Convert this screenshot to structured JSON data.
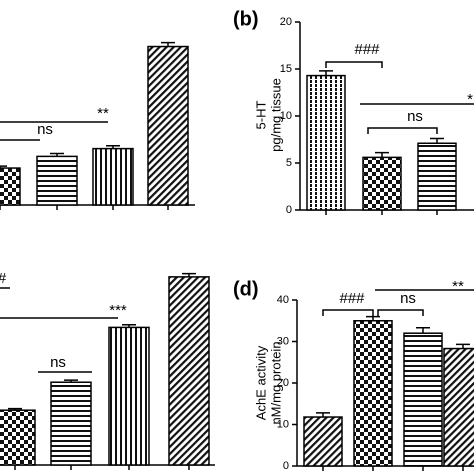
{
  "chart_data": [
    {
      "type": "bar",
      "categories": [
        null,
        null,
        null,
        null
      ],
      "values": [
        3.8,
        5.0,
        5.8,
        16.3
      ],
      "errors": [
        0.2,
        0.3,
        0.3,
        0.4
      ],
      "patterns": [
        "checker",
        "horizontal",
        "vertical",
        "diagonal"
      ],
      "ylim": [
        0,
        18
      ],
      "annotations": [
        "ns",
        "**"
      ]
    },
    {
      "type": "bar",
      "panel_label": "(b)",
      "ylabel": [
        "5-HT",
        "pg/mg tissue"
      ],
      "categories": [
        null,
        null,
        null
      ],
      "values": [
        14.3,
        5.6,
        7.1
      ],
      "errors": [
        0.5,
        0.5,
        0.5
      ],
      "patterns": [
        "vertical-dots",
        "checker",
        "horizontal"
      ],
      "ylim": [
        0,
        20
      ],
      "yticks": [
        0,
        5,
        10,
        15,
        20
      ],
      "annotations": [
        "###",
        "ns",
        "*"
      ]
    },
    {
      "type": "bar",
      "categories": [
        null,
        null,
        null,
        null
      ],
      "values": [
        5.1,
        7.7,
        12.8,
        17.5
      ],
      "errors": [
        0.15,
        0.2,
        0.25,
        0.3
      ],
      "patterns": [
        "checker",
        "horizontal",
        "vertical",
        "diagonal"
      ],
      "ylim": [
        0,
        20
      ],
      "annotations": [
        "#",
        "***",
        "ns"
      ]
    },
    {
      "type": "bar",
      "panel_label": "(d)",
      "ylabel": [
        "AchE activity",
        "nM/mg protein"
      ],
      "categories": [
        null,
        null,
        null,
        null
      ],
      "values": [
        11.8,
        35,
        32,
        28.3
      ],
      "errors": [
        1,
        1,
        1.3,
        1
      ],
      "patterns": [
        "diagonal",
        "checker",
        "horizontal",
        "diagonal"
      ],
      "ylim": [
        0,
        40
      ],
      "yticks": [
        0,
        10,
        20,
        30,
        40
      ],
      "annotations": [
        "###",
        "ns",
        "**"
      ]
    }
  ]
}
